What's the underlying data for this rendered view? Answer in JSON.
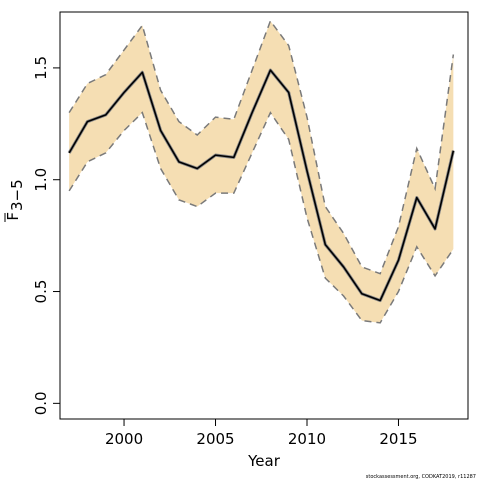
{
  "chart_data": {
    "type": "line",
    "xlabel": "Year",
    "ylabel_main": "F",
    "ylabel_sub": "3−5",
    "xlim": [
      1996.5,
      2018.8
    ],
    "ylim": [
      -0.07,
      1.75
    ],
    "x_ticks": [
      2000,
      2005,
      2010,
      2015
    ],
    "y_ticks": [
      0.0,
      0.5,
      1.0,
      1.5
    ],
    "y_tick_labels": [
      "0.0",
      "0.5",
      "1.0",
      "1.5"
    ],
    "grid": false,
    "legend": "none",
    "band_color": "#f5deb3",
    "line_color": "#000000",
    "bound_color": "#7a7a7a",
    "x": [
      1997,
      1998,
      1999,
      2000,
      2001,
      2002,
      2003,
      2004,
      2005,
      2006,
      2007,
      2008,
      2009,
      2010,
      2011,
      2012,
      2013,
      2014,
      2015,
      2016,
      2017,
      2018
    ],
    "series": [
      {
        "role": "estimate",
        "values": [
          1.12,
          1.26,
          1.29,
          1.39,
          1.48,
          1.22,
          1.08,
          1.05,
          1.11,
          1.1,
          1.3,
          1.49,
          1.39,
          1.04,
          0.71,
          0.61,
          0.49,
          0.46,
          0.64,
          0.92,
          0.78,
          1.13
        ]
      },
      {
        "role": "upper",
        "values": [
          1.3,
          1.43,
          1.47,
          1.58,
          1.69,
          1.4,
          1.26,
          1.2,
          1.28,
          1.27,
          1.49,
          1.71,
          1.6,
          1.28,
          0.88,
          0.76,
          0.61,
          0.58,
          0.79,
          1.14,
          0.96,
          1.56
        ]
      },
      {
        "role": "lower",
        "values": [
          0.95,
          1.08,
          1.12,
          1.22,
          1.3,
          1.05,
          0.91,
          0.88,
          0.94,
          0.94,
          1.12,
          1.3,
          1.18,
          0.83,
          0.56,
          0.48,
          0.37,
          0.36,
          0.5,
          0.7,
          0.57,
          0.69
        ]
      }
    ]
  },
  "caption": "stockassessment.org,  CODKAT2019,  r11287"
}
